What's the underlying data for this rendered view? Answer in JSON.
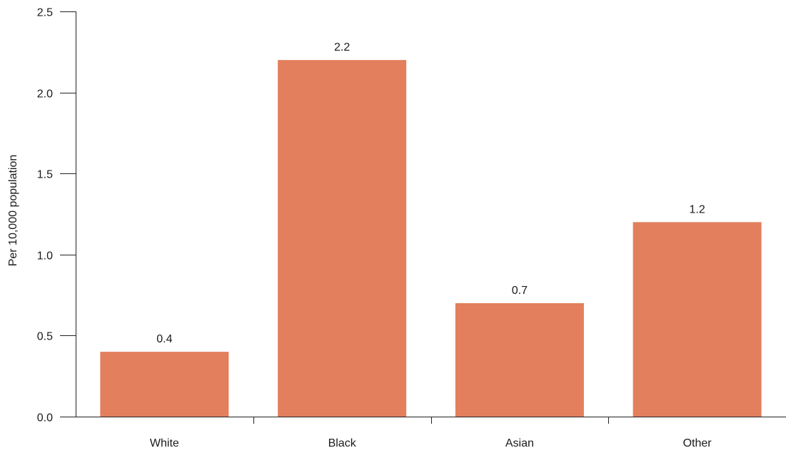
{
  "chart_data": {
    "type": "bar",
    "categories": [
      "White",
      "Black",
      "Asian",
      "Other"
    ],
    "values": [
      0.4,
      2.2,
      0.7,
      1.2
    ],
    "data_labels": [
      "0.4",
      "2.2",
      "0.7",
      "1.2"
    ],
    "title": "",
    "xlabel": "",
    "ylabel": "Per 10,000 population",
    "ylim": [
      0,
      2.5
    ],
    "yticks": [
      0.0,
      0.5,
      1.0,
      1.5,
      2.0,
      2.5
    ],
    "ytick_labels": [
      "0.0",
      "0.5",
      "1.0",
      "1.5",
      "2.0",
      "2.5"
    ],
    "grid": false,
    "legend": "none",
    "bar_color": "#E37F5C"
  }
}
